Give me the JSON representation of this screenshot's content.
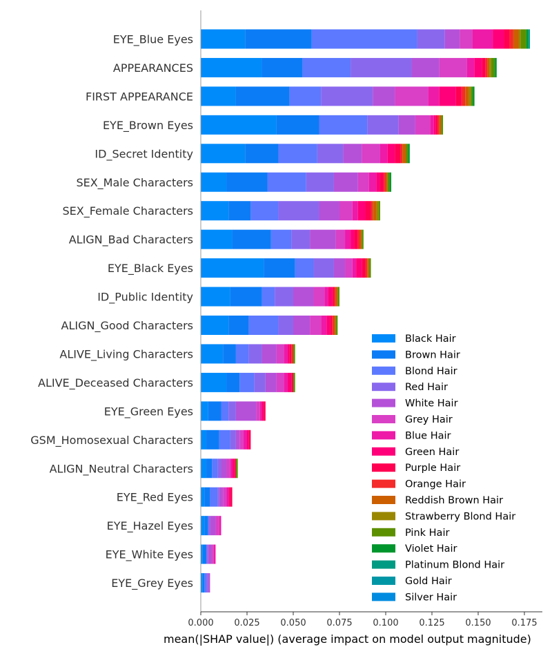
{
  "chart_data": {
    "type": "bar",
    "orientation": "horizontal",
    "stacked": true,
    "title": "",
    "xlabel": "mean(|SHAP value|) (average impact on model output magnitude)",
    "ylabel": "",
    "xlim": [
      0,
      0.185
    ],
    "x_ticks": [
      "0.000",
      "0.025",
      "0.050",
      "0.075",
      "0.100",
      "0.125",
      "0.150",
      "0.175"
    ],
    "x_tick_values": [
      0,
      0.025,
      0.05,
      0.075,
      0.1,
      0.125,
      0.15,
      0.175
    ],
    "grid": false,
    "legend_position": "lower-right",
    "categories": [
      "EYE_Blue Eyes",
      "APPEARANCES",
      "FIRST APPEARANCE",
      "EYE_Brown Eyes",
      "ID_Secret Identity",
      "SEX_Male Characters",
      "SEX_Female Characters",
      "ALIGN_Bad Characters",
      "EYE_Black Eyes",
      "ID_Public Identity",
      "ALIGN_Good Characters",
      "ALIVE_Living Characters",
      "ALIVE_Deceased Characters",
      "EYE_Green Eyes",
      "GSM_Homosexual Characters",
      "ALIGN_Neutral Characters",
      "EYE_Red Eyes",
      "EYE_Hazel Eyes",
      "EYE_White Eyes",
      "EYE_Grey Eyes"
    ],
    "series": [
      {
        "name": "Black Hair",
        "color": "#008bfb",
        "values": [
          0.024,
          0.033,
          0.019,
          0.041,
          0.024,
          0.014,
          0.015,
          0.017,
          0.034,
          0.016,
          0.015,
          0.012,
          0.014,
          0.004,
          0.003,
          0.003,
          0.002,
          0.002,
          0.001,
          0.001
        ]
      },
      {
        "name": "Brown Hair",
        "color": "#0c7cf6",
        "values": [
          0.036,
          0.022,
          0.029,
          0.023,
          0.018,
          0.022,
          0.012,
          0.021,
          0.017,
          0.017,
          0.011,
          0.007,
          0.007,
          0.007,
          0.007,
          0.003,
          0.003,
          0.002,
          0.002,
          0.001
        ]
      },
      {
        "name": "Blond Hair",
        "color": "#5c79ff",
        "values": [
          0.057,
          0.026,
          0.017,
          0.026,
          0.021,
          0.021,
          0.015,
          0.011,
          0.01,
          0.007,
          0.016,
          0.007,
          0.008,
          0.004,
          0.006,
          0.003,
          0.004,
          0.0,
          0.0,
          0.001
        ]
      },
      {
        "name": "Red Hair",
        "color": "#8a68ee",
        "values": [
          0.015,
          0.033,
          0.028,
          0.017,
          0.014,
          0.015,
          0.022,
          0.01,
          0.011,
          0.01,
          0.008,
          0.007,
          0.006,
          0.004,
          0.003,
          0.002,
          0.001,
          0.001,
          0.001,
          0.001
        ]
      },
      {
        "name": "White Hair",
        "color": "#b551d9",
        "values": [
          0.008,
          0.015,
          0.012,
          0.009,
          0.01,
          0.013,
          0.011,
          0.014,
          0.006,
          0.011,
          0.009,
          0.008,
          0.006,
          0.011,
          0.002,
          0.003,
          0.002,
          0.003,
          0.002,
          0.001
        ]
      },
      {
        "name": "Grey Hair",
        "color": "#d940c6",
        "values": [
          0.007,
          0.015,
          0.018,
          0.008,
          0.01,
          0.006,
          0.007,
          0.005,
          0.004,
          0.006,
          0.006,
          0.004,
          0.004,
          0.002,
          0.002,
          0.002,
          0.002,
          0.002,
          0.001,
          0.0
        ]
      },
      {
        "name": "Blue Hair",
        "color": "#ee1aa8",
        "values": [
          0.011,
          0.004,
          0.006,
          0.002,
          0.004,
          0.004,
          0.003,
          0.003,
          0.002,
          0.002,
          0.003,
          0.002,
          0.002,
          0.001,
          0.002,
          0.001,
          0.001,
          0.001,
          0.001,
          0.0
        ]
      },
      {
        "name": "Green Hair",
        "color": "#ff007a",
        "values": [
          0.006,
          0.004,
          0.009,
          0.001,
          0.004,
          0.002,
          0.004,
          0.002,
          0.003,
          0.002,
          0.002,
          0.001,
          0.002,
          0.001,
          0.001,
          0.001,
          0.001,
          0.0,
          0.0,
          0.0
        ]
      },
      {
        "name": "Purple Hair",
        "color": "#ff0052",
        "values": [
          0.003,
          0.002,
          0.003,
          0.001,
          0.003,
          0.002,
          0.003,
          0.002,
          0.002,
          0.001,
          0.001,
          0.001,
          0.001,
          0.001,
          0.001,
          0.001,
          0.001,
          0.0,
          0.0,
          0.0
        ]
      },
      {
        "name": "Orange Hair",
        "color": "#f52a2a",
        "values": [
          0.002,
          0.001,
          0.002,
          0.001,
          0.001,
          0.001,
          0.001,
          0.001,
          0.001,
          0.001,
          0.001,
          0.001,
          0.0,
          0.0,
          0.0,
          0.0,
          0.0,
          0.0,
          0.0,
          0.0
        ]
      },
      {
        "name": "Reddish Brown Hair",
        "color": "#cc5f00",
        "values": [
          0.003,
          0.001,
          0.002,
          0.001,
          0.002,
          0.001,
          0.002,
          0.001,
          0.001,
          0.001,
          0.001,
          0.0,
          0.0,
          0.0,
          0.0,
          0.0,
          0.0,
          0.0,
          0.0,
          0.0
        ]
      },
      {
        "name": "Strawberry Blond Hair",
        "color": "#9a8700",
        "values": [
          0.001,
          0.001,
          0.001,
          0.0,
          0.0,
          0.0,
          0.001,
          0.0,
          0.0,
          0.0,
          0.0,
          0.0,
          0.0,
          0.0,
          0.0,
          0.0,
          0.0,
          0.0,
          0.0,
          0.0
        ]
      },
      {
        "name": "Pink Hair",
        "color": "#5c9000",
        "values": [
          0.003,
          0.002,
          0.001,
          0.001,
          0.001,
          0.001,
          0.001,
          0.001,
          0.001,
          0.001,
          0.001,
          0.001,
          0.001,
          0.0,
          0.0,
          0.001,
          0.0,
          0.0,
          0.0,
          0.0
        ]
      },
      {
        "name": "Violet Hair",
        "color": "#00962d",
        "values": [
          0.001,
          0.001,
          0.001,
          0.0,
          0.001,
          0.001,
          0.0,
          0.0,
          0.0,
          0.0,
          0.0,
          0.0,
          0.0,
          0.0,
          0.0,
          0.0,
          0.0,
          0.0,
          0.0,
          0.0
        ]
      },
      {
        "name": "Platinum Blond Hair",
        "color": "#009b83",
        "values": [
          0.001,
          0.0,
          0.0,
          0.0,
          0.0,
          0.0,
          0.0,
          0.0,
          0.0,
          0.0,
          0.0,
          0.0,
          0.0,
          0.0,
          0.0,
          0.0,
          0.0,
          0.0,
          0.0,
          0.0
        ]
      },
      {
        "name": "Gold Hair",
        "color": "#0096a6",
        "values": [
          0.0,
          0.0,
          0.0,
          0.0,
          0.0,
          0.0,
          0.0,
          0.0,
          0.0,
          0.0,
          0.0,
          0.0,
          0.0,
          0.0,
          0.0,
          0.0,
          0.0,
          0.0,
          0.0,
          0.0
        ]
      },
      {
        "name": "Silver Hair",
        "color": "#008be0",
        "values": [
          0.0,
          0.0,
          0.0,
          0.0,
          0.0,
          0.0,
          0.0,
          0.0,
          0.0,
          0.0,
          0.0,
          0.0,
          0.0,
          0.0,
          0.0,
          0.0,
          0.0,
          0.0,
          0.0,
          0.0
        ]
      }
    ]
  }
}
